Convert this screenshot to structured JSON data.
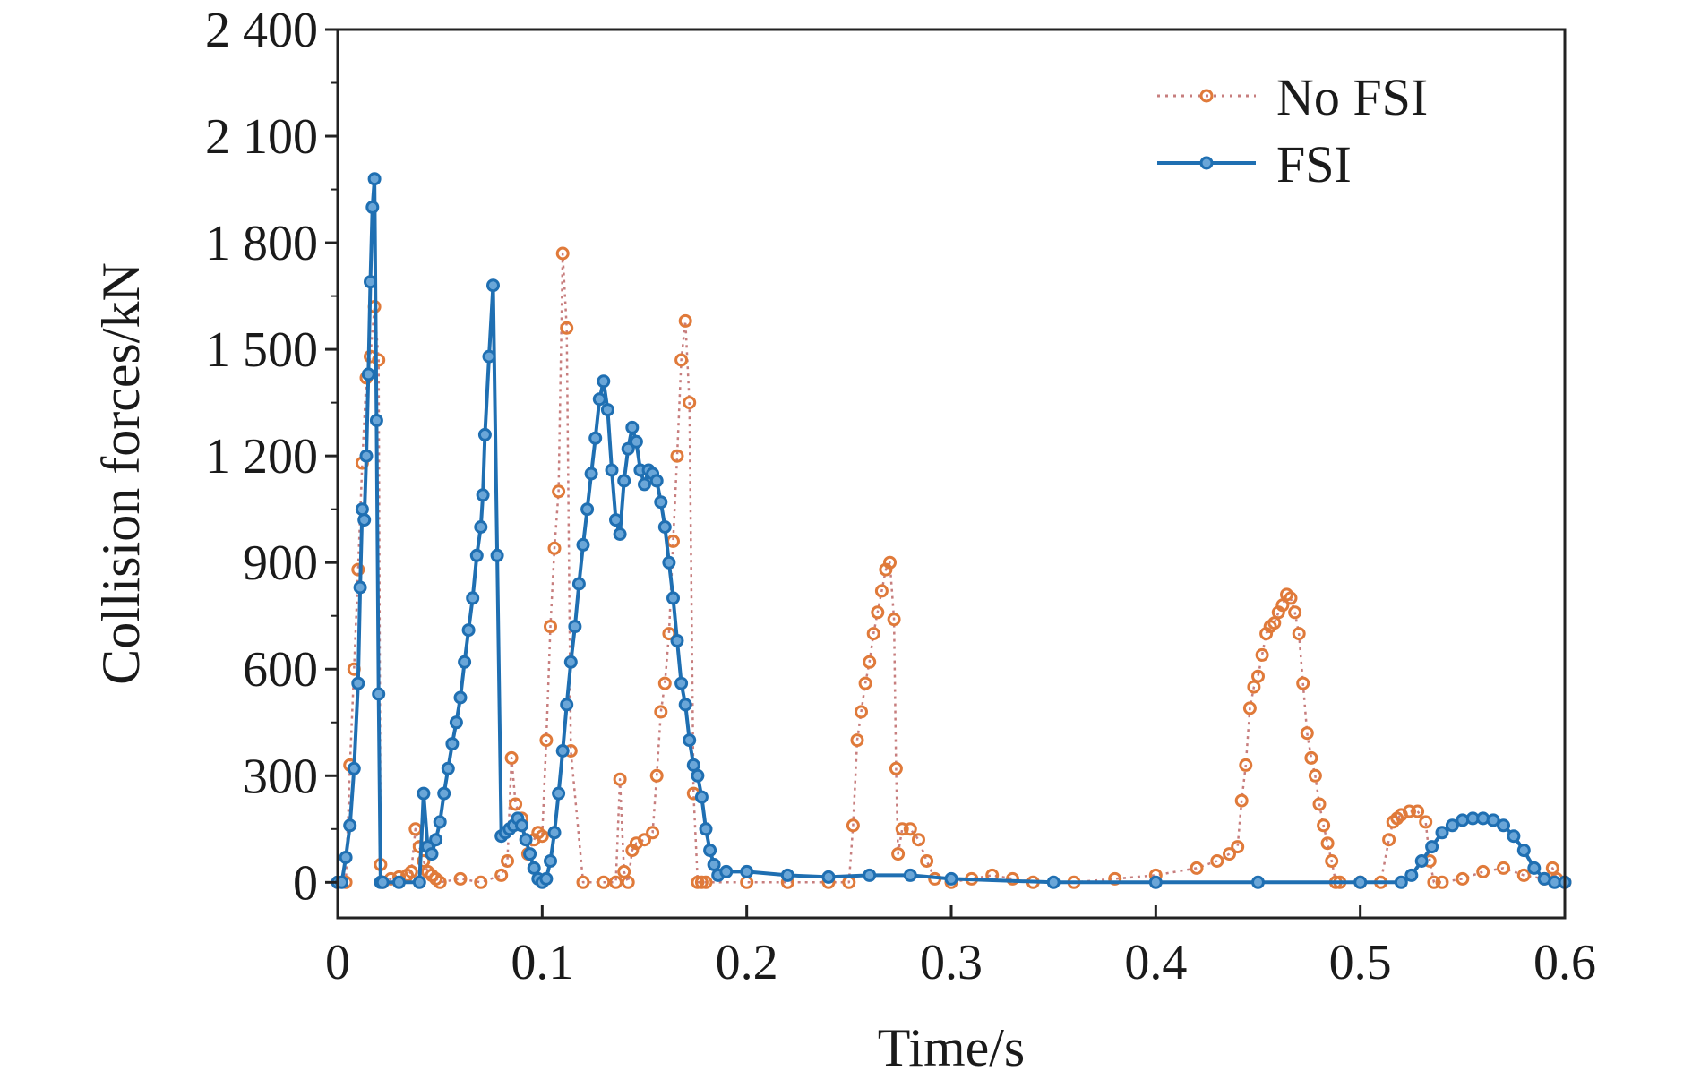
{
  "chart_data": {
    "type": "line",
    "title": "",
    "xlabel": "Time/s",
    "ylabel": "Collision forces/kN",
    "xlim": [
      0,
      0.6
    ],
    "ylim": [
      -100,
      2400
    ],
    "xticks": [
      0,
      0.1,
      0.2,
      0.3,
      0.4,
      0.5,
      0.6
    ],
    "xtick_labels": [
      "0",
      "0.1",
      "0.2",
      "0.3",
      "0.4",
      "0.5",
      "0.6"
    ],
    "yticks": [
      0,
      300,
      600,
      900,
      1200,
      1500,
      1800,
      2100,
      2400
    ],
    "ytick_labels": [
      "0",
      "300",
      "600",
      "900",
      "1 200",
      "1 500",
      "1 800",
      "2 100",
      "2 400"
    ],
    "grid": false,
    "legend_position": "top-right",
    "series": [
      {
        "name": "No FSI",
        "color": "#e07a3a",
        "style": "dotted-circle-markers",
        "x": [
          0,
          0.004,
          0.006,
          0.008,
          0.01,
          0.012,
          0.014,
          0.016,
          0.018,
          0.02,
          0.021,
          0.022,
          0.026,
          0.03,
          0.034,
          0.036,
          0.038,
          0.04,
          0.042,
          0.044,
          0.046,
          0.048,
          0.05,
          0.06,
          0.07,
          0.08,
          0.083,
          0.085,
          0.087,
          0.09,
          0.093,
          0.096,
          0.098,
          0.1,
          0.102,
          0.104,
          0.106,
          0.108,
          0.11,
          0.112,
          0.114,
          0.12,
          0.13,
          0.136,
          0.138,
          0.14,
          0.142,
          0.144,
          0.146,
          0.15,
          0.154,
          0.156,
          0.158,
          0.16,
          0.162,
          0.164,
          0.166,
          0.168,
          0.17,
          0.172,
          0.174,
          0.176,
          0.178,
          0.18,
          0.2,
          0.22,
          0.24,
          0.25,
          0.252,
          0.254,
          0.256,
          0.258,
          0.26,
          0.262,
          0.264,
          0.266,
          0.268,
          0.27,
          0.272,
          0.273,
          0.274,
          0.276,
          0.28,
          0.284,
          0.288,
          0.292,
          0.3,
          0.31,
          0.32,
          0.33,
          0.34,
          0.36,
          0.38,
          0.4,
          0.42,
          0.43,
          0.436,
          0.44,
          0.442,
          0.444,
          0.446,
          0.448,
          0.45,
          0.452,
          0.454,
          0.456,
          0.458,
          0.46,
          0.462,
          0.464,
          0.466,
          0.468,
          0.47,
          0.472,
          0.474,
          0.476,
          0.478,
          0.48,
          0.482,
          0.484,
          0.486,
          0.488,
          0.49,
          0.5,
          0.51,
          0.514,
          0.516,
          0.518,
          0.52,
          0.524,
          0.528,
          0.532,
          0.534,
          0.536,
          0.54,
          0.55,
          0.56,
          0.57,
          0.58,
          0.59,
          0.594,
          0.596,
          0.6
        ],
        "y": [
          0,
          0,
          330,
          600,
          880,
          1180,
          1420,
          1480,
          1620,
          1470,
          50,
          0,
          10,
          15,
          20,
          30,
          150,
          100,
          60,
          30,
          20,
          10,
          0,
          10,
          0,
          20,
          60,
          350,
          220,
          180,
          80,
          120,
          140,
          130,
          400,
          720,
          940,
          1100,
          1770,
          1560,
          370,
          0,
          0,
          0,
          290,
          30,
          0,
          90,
          110,
          120,
          140,
          300,
          480,
          560,
          700,
          960,
          1200,
          1470,
          1580,
          1350,
          250,
          0,
          0,
          0,
          0,
          0,
          0,
          0,
          160,
          400,
          480,
          560,
          620,
          700,
          760,
          820,
          880,
          900,
          740,
          320,
          80,
          150,
          150,
          120,
          60,
          10,
          0,
          10,
          20,
          10,
          0,
          0,
          10,
          20,
          40,
          60,
          80,
          100,
          230,
          330,
          490,
          550,
          580,
          640,
          700,
          720,
          730,
          760,
          780,
          810,
          800,
          760,
          700,
          560,
          420,
          350,
          300,
          220,
          160,
          110,
          60,
          0,
          0,
          0,
          0,
          120,
          170,
          180,
          190,
          200,
          200,
          170,
          60,
          0,
          0,
          10,
          30,
          40,
          20,
          10,
          40,
          10,
          0
        ]
      },
      {
        "name": "FSI",
        "color": "#1f6fb2",
        "style": "solid-circle-markers",
        "x": [
          0,
          0.002,
          0.004,
          0.006,
          0.008,
          0.01,
          0.011,
          0.012,
          0.013,
          0.014,
          0.015,
          0.016,
          0.017,
          0.018,
          0.019,
          0.02,
          0.021,
          0.022,
          0.03,
          0.04,
          0.042,
          0.044,
          0.046,
          0.048,
          0.05,
          0.052,
          0.054,
          0.056,
          0.058,
          0.06,
          0.062,
          0.064,
          0.066,
          0.068,
          0.07,
          0.071,
          0.072,
          0.074,
          0.076,
          0.078,
          0.08,
          0.082,
          0.084,
          0.086,
          0.088,
          0.09,
          0.092,
          0.094,
          0.096,
          0.098,
          0.1,
          0.102,
          0.104,
          0.106,
          0.108,
          0.11,
          0.112,
          0.114,
          0.116,
          0.118,
          0.12,
          0.122,
          0.124,
          0.126,
          0.128,
          0.13,
          0.132,
          0.134,
          0.136,
          0.138,
          0.14,
          0.142,
          0.144,
          0.146,
          0.148,
          0.15,
          0.152,
          0.154,
          0.156,
          0.158,
          0.16,
          0.162,
          0.164,
          0.166,
          0.168,
          0.17,
          0.172,
          0.174,
          0.176,
          0.178,
          0.18,
          0.182,
          0.184,
          0.186,
          0.19,
          0.2,
          0.22,
          0.24,
          0.26,
          0.28,
          0.3,
          0.35,
          0.4,
          0.45,
          0.5,
          0.52,
          0.525,
          0.53,
          0.535,
          0.54,
          0.545,
          0.55,
          0.555,
          0.56,
          0.565,
          0.57,
          0.575,
          0.58,
          0.585,
          0.59,
          0.595,
          0.6
        ],
        "y": [
          0,
          0,
          70,
          160,
          320,
          560,
          830,
          1050,
          1020,
          1200,
          1430,
          1690,
          1900,
          1980,
          1300,
          530,
          0,
          0,
          0,
          0,
          250,
          100,
          80,
          120,
          170,
          250,
          320,
          390,
          450,
          520,
          620,
          710,
          800,
          920,
          1000,
          1090,
          1260,
          1480,
          1680,
          920,
          130,
          140,
          150,
          160,
          180,
          160,
          120,
          80,
          40,
          10,
          0,
          10,
          60,
          140,
          250,
          370,
          500,
          620,
          720,
          840,
          950,
          1050,
          1150,
          1250,
          1360,
          1410,
          1330,
          1160,
          1020,
          980,
          1130,
          1220,
          1280,
          1240,
          1160,
          1120,
          1160,
          1150,
          1130,
          1070,
          1000,
          900,
          800,
          680,
          560,
          500,
          400,
          330,
          300,
          240,
          150,
          90,
          50,
          20,
          30,
          30,
          20,
          15,
          20,
          20,
          10,
          0,
          0,
          0,
          0,
          0,
          20,
          60,
          100,
          140,
          160,
          175,
          180,
          180,
          175,
          160,
          130,
          90,
          40,
          10,
          0,
          0
        ]
      }
    ]
  }
}
